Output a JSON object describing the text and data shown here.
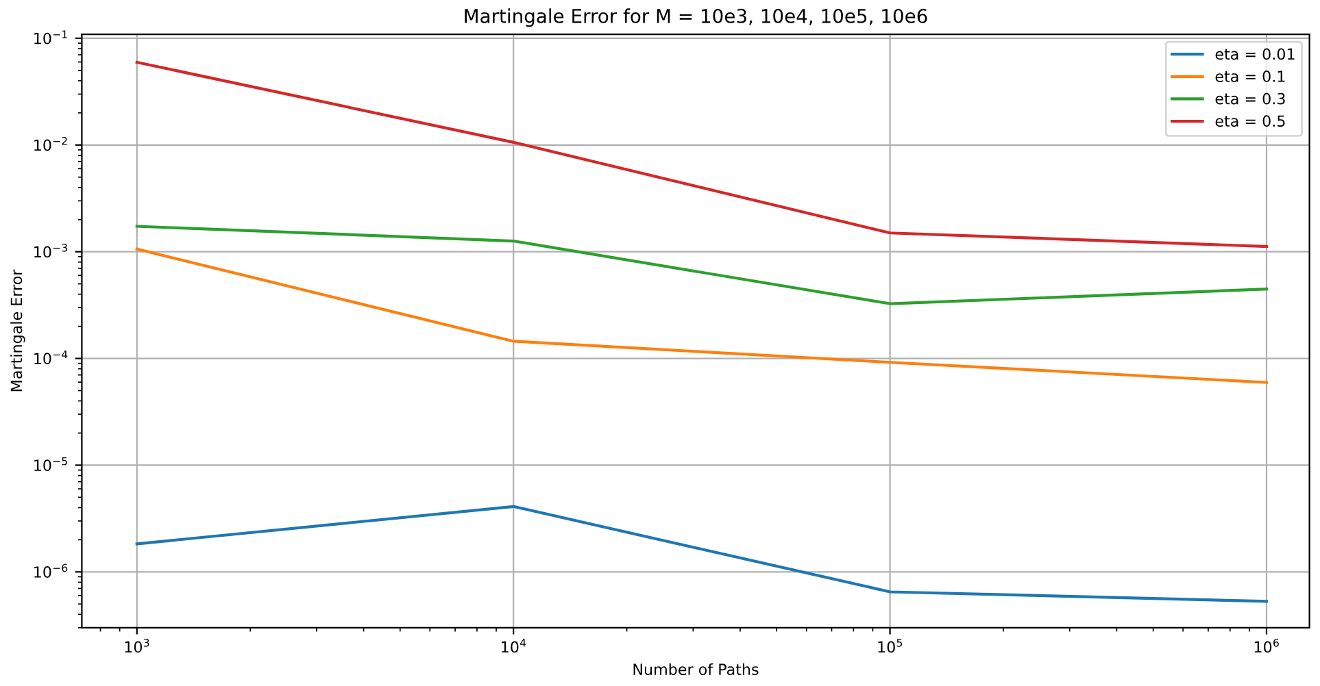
{
  "chart_data": {
    "type": "line",
    "title": "Martingale Error for M = 10e3, 10e4, 10e5, 10e6",
    "xlabel": "Number of Paths",
    "ylabel": "Martingale Error",
    "x": [
      1000,
      10000,
      100000,
      1000000
    ],
    "series": [
      {
        "name": "eta = 0.01",
        "color": "#1f77b4",
        "values": [
          1.83e-06,
          4.1e-06,
          6.5e-07,
          5.3e-07
        ]
      },
      {
        "name": "eta = 0.1",
        "color": "#ff7f0e",
        "values": [
          0.00106,
          0.000145,
          9.2e-05,
          5.96e-05
        ]
      },
      {
        "name": "eta = 0.3",
        "color": "#2ca02c",
        "values": [
          0.00173,
          0.00126,
          0.000326,
          0.000447
        ]
      },
      {
        "name": "eta = 0.5",
        "color": "#d62728",
        "values": [
          0.0596,
          0.0106,
          0.0015,
          0.00112
        ]
      }
    ],
    "log": "xy",
    "xlim": [
      714,
      1300000
    ],
    "ylim": [
      3e-07,
      0.109
    ],
    "xticks": [
      {
        "value": 1000,
        "label": "10$^{3}$"
      },
      {
        "value": 10000,
        "label": "10$^{4}$"
      },
      {
        "value": 100000,
        "label": "10$^{5}$"
      },
      {
        "value": 1000000,
        "label": "10$^{6}$"
      }
    ],
    "yticks": [
      {
        "value": 1e-06,
        "label": "10$^{−6}$"
      },
      {
        "value": 1e-05,
        "label": "10$^{−5}$"
      },
      {
        "value": 0.0001,
        "label": "10$^{−4}$"
      },
      {
        "value": 0.001,
        "label": "10$^{−3}$"
      },
      {
        "value": 0.01,
        "label": "10$^{−2}$"
      },
      {
        "value": 0.1,
        "label": "10$^{−1}$"
      }
    ],
    "grid": true,
    "legend": "top right"
  }
}
